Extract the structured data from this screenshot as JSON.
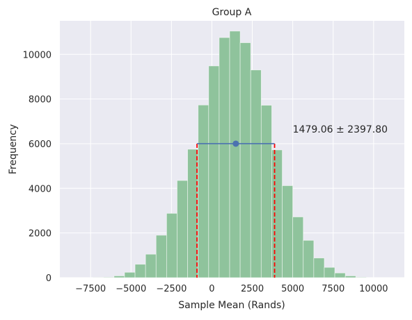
{
  "chart_data": {
    "type": "bar",
    "title": "Group A",
    "xlabel": "Sample Mean (Rands)",
    "ylabel": "Frequency",
    "xlim": [
      -9400,
      11900
    ],
    "ylim": [
      0,
      11500
    ],
    "xticks": [
      -7500,
      -5000,
      -2500,
      0,
      2500,
      5000,
      7500,
      10000
    ],
    "yticks": [
      0,
      2000,
      4000,
      6000,
      8000,
      10000
    ],
    "bin_width": 650,
    "bins": [
      {
        "x0": -7350,
        "value": 5
      },
      {
        "x0": -6700,
        "value": 20
      },
      {
        "x0": -6050,
        "value": 80
      },
      {
        "x0": -5400,
        "value": 240
      },
      {
        "x0": -4750,
        "value": 600
      },
      {
        "x0": -4100,
        "value": 1050
      },
      {
        "x0": -3450,
        "value": 1900
      },
      {
        "x0": -2800,
        "value": 2880
      },
      {
        "x0": -2150,
        "value": 4350
      },
      {
        "x0": -1500,
        "value": 5750
      },
      {
        "x0": -850,
        "value": 7730
      },
      {
        "x0": -200,
        "value": 9480
      },
      {
        "x0": 450,
        "value": 10750
      },
      {
        "x0": 1100,
        "value": 11040
      },
      {
        "x0": 1750,
        "value": 10520
      },
      {
        "x0": 2400,
        "value": 9300
      },
      {
        "x0": 3050,
        "value": 7720
      },
      {
        "x0": 3700,
        "value": 5720
      },
      {
        "x0": 4350,
        "value": 4120
      },
      {
        "x0": 5000,
        "value": 2720
      },
      {
        "x0": 5650,
        "value": 1670
      },
      {
        "x0": 6300,
        "value": 880
      },
      {
        "x0": 6950,
        "value": 460
      },
      {
        "x0": 7600,
        "value": 210
      },
      {
        "x0": 8250,
        "value": 80
      },
      {
        "x0": 8900,
        "value": 20
      }
    ],
    "mean": 1479.06,
    "std": 2397.8,
    "interval": [
      -918.74,
      3876.86
    ],
    "interval_y": 6000,
    "annotation": "1479.06 ± 2397.80",
    "annotation_position": {
      "x": 5000,
      "y": 6500
    },
    "grid": true
  },
  "colors": {
    "background": "#eaeaf2",
    "grid": "#ffffff",
    "bars": "#8fc39c",
    "interval_line": "#4c72b0",
    "mean_marker": "#4c72b0",
    "bound_lines": "#ff0000"
  }
}
